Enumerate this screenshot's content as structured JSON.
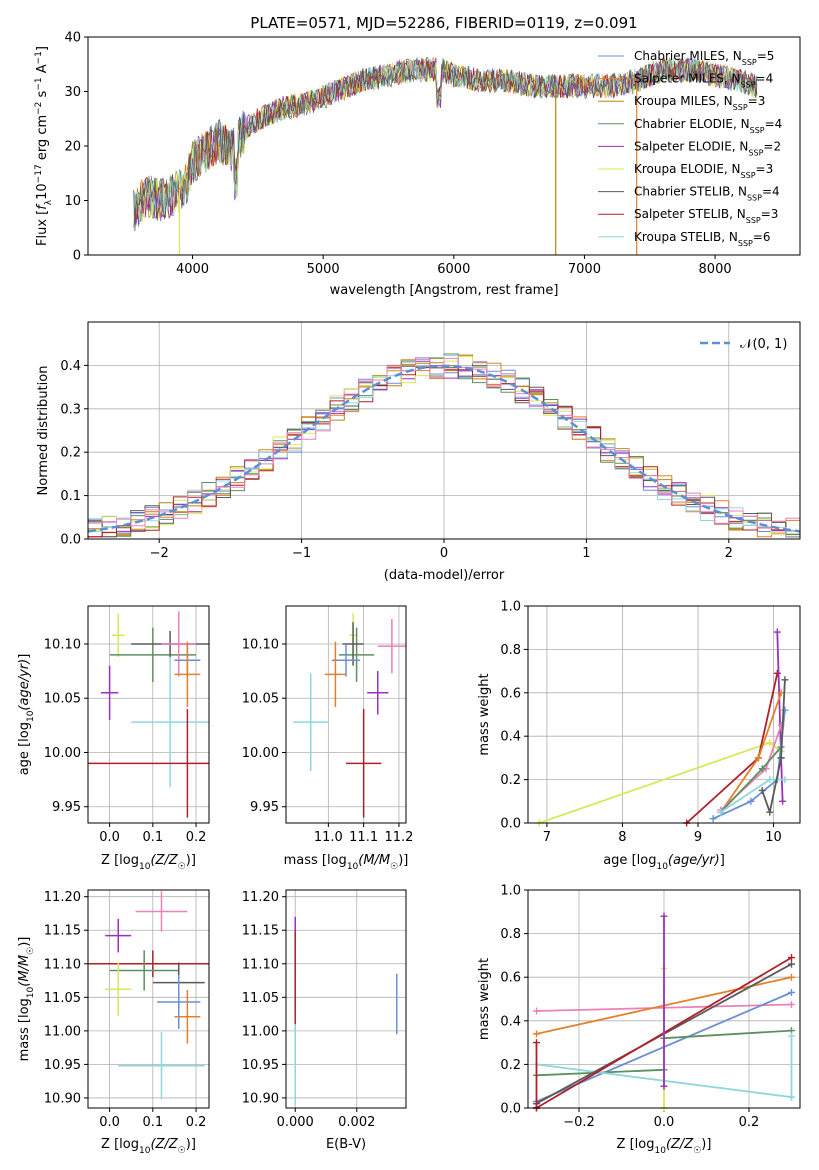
{
  "title": "PLATE=0571, MJD=52286, FIBERID=0119, z=0.091",
  "colors": {
    "Chabrier MILES": "#6b8fd6",
    "Salpeter MILES": "#e57f2a",
    "Kroupa MILES": "#b8860b",
    "Chabrier ELODIE": "#5f8f5f",
    "Salpeter ELODIE": "#9b2fbf",
    "Kroupa ELODIE": "#d8e85a",
    "Chabrier STELIB": "#5a5a5a",
    "Salpeter STELIB": "#b0202a",
    "Kroupa STELIB": "#8ed8dc",
    "pink": "#ec80b8",
    "normal": "#5b8fd6"
  },
  "chart_data": [
    {
      "type": "line",
      "name": "spectrum",
      "xlabel": "wavelength [Angstrom, rest frame]",
      "ylabel": "Flux [f_λ 10^-17 erg cm^-2 s^-1 A^-1]",
      "xlim": [
        3200,
        8650
      ],
      "ylim": [
        0,
        40
      ],
      "xticks": [
        4000,
        5000,
        6000,
        7000,
        8000
      ],
      "yticks": [
        0,
        10,
        20,
        30,
        40
      ],
      "legend_position": "top-right",
      "legend": [
        {
          "label": "Chabrier MILES, N",
          "sub": "SSP",
          "tail": "=5",
          "color": "#6b8fd6"
        },
        {
          "label": "Salpeter MILES, N",
          "sub": "SSP",
          "tail": "=4",
          "color": "#e57f2a"
        },
        {
          "label": "Kroupa MILES, N",
          "sub": "SSP",
          "tail": "=3",
          "color": "#b8860b"
        },
        {
          "label": "Chabrier ELODIE, N",
          "sub": "SSP",
          "tail": "=4",
          "color": "#5f8f5f"
        },
        {
          "label": "Salpeter ELODIE, N",
          "sub": "SSP",
          "tail": "=2",
          "color": "#9b2fbf"
        },
        {
          "label": "Kroupa ELODIE, N",
          "sub": "SSP",
          "tail": "=3",
          "color": "#d8e85a"
        },
        {
          "label": "Chabrier STELIB, N",
          "sub": "SSP",
          "tail": "=4",
          "color": "#5a5a5a"
        },
        {
          "label": "Salpeter STELIB, N",
          "sub": "SSP",
          "tail": "=3",
          "color": "#b0202a"
        },
        {
          "label": "Kroupa STELIB, N",
          "sub": "SSP",
          "tail": "=6",
          "color": "#8ed8dc"
        }
      ],
      "continuum": [
        [
          3550,
          8
        ],
        [
          3650,
          11
        ],
        [
          3750,
          10
        ],
        [
          3850,
          11
        ],
        [
          3950,
          13
        ],
        [
          4000,
          17
        ],
        [
          4100,
          19
        ],
        [
          4200,
          21
        ],
        [
          4300,
          19
        ],
        [
          4400,
          23
        ],
        [
          4500,
          25
        ],
        [
          4700,
          27
        ],
        [
          4900,
          28
        ],
        [
          5100,
          30
        ],
        [
          5300,
          32
        ],
        [
          5500,
          33
        ],
        [
          5700,
          34
        ],
        [
          5900,
          34
        ],
        [
          6000,
          33
        ],
        [
          6200,
          32
        ],
        [
          6400,
          32
        ],
        [
          6600,
          31
        ],
        [
          6800,
          31
        ],
        [
          7000,
          31
        ],
        [
          7200,
          31
        ],
        [
          7400,
          32
        ],
        [
          7600,
          34
        ],
        [
          7800,
          34
        ],
        [
          8000,
          33
        ],
        [
          8200,
          32
        ],
        [
          8300,
          31
        ]
      ],
      "spikes": [
        [
          3900,
          0
        ],
        [
          6780,
          0
        ],
        [
          7400,
          0
        ]
      ]
    },
    {
      "type": "histogram",
      "name": "residuals",
      "xlabel": "(data-model)/error",
      "ylabel": "Normed distribution",
      "xlim": [
        -2.5,
        2.5
      ],
      "ylim": [
        0,
        0.5
      ],
      "xticks": [
        -2,
        -1,
        0,
        1,
        2
      ],
      "yticks": [
        0.0,
        0.1,
        0.2,
        0.3,
        0.4
      ],
      "legend_position": "top-right",
      "legend_label": "𝒩(0, 1)",
      "bin_width": 0.1
    },
    {
      "type": "errorbar",
      "name": "age-vs-Z",
      "xlabel": "Z [log10(Z/Z☉)]",
      "ylabel": "age [log10(age/yr)]",
      "xlim": [
        -0.05,
        0.23
      ],
      "ylim": [
        9.935,
        10.135
      ],
      "xticks": [
        0.0,
        0.1,
        0.2
      ],
      "yticks": [
        9.95,
        10.0,
        10.05,
        10.1
      ],
      "points": [
        {
          "x": 0.02,
          "y": 10.108,
          "xerr": 0.015,
          "yerr": 0.02,
          "color": "#d8e85a"
        },
        {
          "x": 0.1,
          "y": 10.09,
          "xerr": 0.1,
          "yerr": 0.025,
          "color": "#5f8f5f"
        },
        {
          "x": 0.14,
          "y": 10.1,
          "xerr": 0.09,
          "yerr": 0.012,
          "color": "#5a5a5a"
        },
        {
          "x": 0.16,
          "y": 10.1,
          "xerr": 0.04,
          "yerr": 0.03,
          "color": "#ec80b8"
        },
        {
          "x": 0.18,
          "y": 10.085,
          "xerr": 0.03,
          "yerr": 0.015,
          "color": "#6b8fd6"
        },
        {
          "x": 0.18,
          "y": 10.072,
          "xerr": 0.03,
          "yerr": 0.03,
          "color": "#e57f2a"
        },
        {
          "x": 0.0,
          "y": 10.055,
          "xerr": 0.02,
          "yerr": 0.025,
          "color": "#9b2fbf"
        },
        {
          "x": 0.14,
          "y": 10.028,
          "xerr": 0.09,
          "yerr": 0.06,
          "color": "#8ed8dc"
        },
        {
          "x": 0.18,
          "y": 9.99,
          "xerr": 0.25,
          "yerr": 0.05,
          "color": "#b0202a"
        }
      ]
    },
    {
      "type": "errorbar",
      "name": "age-vs-mass",
      "xlabel": "mass [log10(M/M☉)]",
      "ylabel": "",
      "xlim": [
        10.88,
        11.22
      ],
      "ylim": [
        9.935,
        10.135
      ],
      "xticks": [
        11.0,
        11.1,
        11.2
      ],
      "yticks": [
        9.95,
        10.0,
        10.05,
        10.1
      ],
      "points": [
        {
          "x": 11.07,
          "y": 10.108,
          "xerr": 0.01,
          "yerr": 0.02,
          "color": "#d8e85a"
        },
        {
          "x": 11.08,
          "y": 10.09,
          "xerr": 0.05,
          "yerr": 0.025,
          "color": "#5f8f5f"
        },
        {
          "x": 11.07,
          "y": 10.1,
          "xerr": 0.03,
          "yerr": 0.02,
          "color": "#5a5a5a"
        },
        {
          "x": 11.18,
          "y": 10.098,
          "xerr": 0.04,
          "yerr": 0.025,
          "color": "#ec80b8"
        },
        {
          "x": 11.05,
          "y": 10.085,
          "xerr": 0.04,
          "yerr": 0.015,
          "color": "#6b8fd6"
        },
        {
          "x": 11.02,
          "y": 10.072,
          "xerr": 0.03,
          "yerr": 0.03,
          "color": "#e57f2a"
        },
        {
          "x": 11.14,
          "y": 10.055,
          "xerr": 0.03,
          "yerr": 0.02,
          "color": "#9b2fbf"
        },
        {
          "x": 10.95,
          "y": 10.028,
          "xerr": 0.05,
          "yerr": 0.045,
          "color": "#8ed8dc"
        },
        {
          "x": 11.1,
          "y": 9.99,
          "xerr": 0.05,
          "yerr": 0.05,
          "color": "#b0202a"
        }
      ]
    },
    {
      "type": "line",
      "name": "weight-vs-age",
      "xlabel": "age [log10(age/yr)]",
      "ylabel": "mass weight",
      "xlim": [
        6.75,
        10.35
      ],
      "ylim": [
        0,
        1.0
      ],
      "xticks": [
        7,
        8,
        9,
        10
      ],
      "yticks": [
        0.0,
        0.2,
        0.4,
        0.6,
        0.8,
        1.0
      ]
    },
    {
      "type": "errorbar",
      "name": "mass-vs-Z",
      "xlabel": "Z [log10(Z/Z☉)]",
      "ylabel": "mass [log10(M/M☉)]",
      "xlim": [
        -0.05,
        0.23
      ],
      "ylim": [
        10.885,
        11.21
      ],
      "xticks": [
        0.0,
        0.1,
        0.2
      ],
      "yticks": [
        10.9,
        10.95,
        11.0,
        11.05,
        11.1,
        11.15,
        11.2
      ],
      "points": [
        {
          "x": 0.12,
          "y": 11.178,
          "xerr": 0.06,
          "yerr": 0.03,
          "color": "#ec80b8"
        },
        {
          "x": 0.02,
          "y": 11.142,
          "xerr": 0.03,
          "yerr": 0.025,
          "color": "#9b2fbf"
        },
        {
          "x": 0.1,
          "y": 11.1,
          "xerr": 0.25,
          "yerr": 0.02,
          "color": "#b0202a"
        },
        {
          "x": 0.08,
          "y": 11.09,
          "xerr": 0.08,
          "yerr": 0.03,
          "color": "#5f8f5f"
        },
        {
          "x": 0.16,
          "y": 11.072,
          "xerr": 0.06,
          "yerr": 0.03,
          "color": "#5a5a5a"
        },
        {
          "x": 0.02,
          "y": 11.062,
          "xerr": 0.03,
          "yerr": 0.04,
          "color": "#d8e85a"
        },
        {
          "x": 0.16,
          "y": 11.043,
          "xerr": 0.05,
          "yerr": 0.04,
          "color": "#6b8fd6"
        },
        {
          "x": 0.18,
          "y": 11.021,
          "xerr": 0.03,
          "yerr": 0.04,
          "color": "#e57f2a"
        },
        {
          "x": 0.12,
          "y": 10.948,
          "xerr": 0.1,
          "yerr": 0.05,
          "color": "#8ed8dc"
        }
      ]
    },
    {
      "type": "errorbar",
      "name": "mass-vs-ebv",
      "xlabel": "E(B-V)",
      "ylabel": "",
      "xlim": [
        -0.0003,
        0.0036
      ],
      "ylim": [
        10.885,
        11.21
      ],
      "xticks": [
        0.0,
        0.002
      ],
      "yticks": [
        10.9,
        10.95,
        11.0,
        11.05,
        11.1,
        11.15,
        11.2
      ],
      "points": [
        {
          "x": 0.0,
          "y": 11.1,
          "xerr": 0,
          "yerr": 0.07,
          "color": "#9b2fbf"
        },
        {
          "x": 0.0,
          "y": 11.05,
          "xerr": 0,
          "yerr": 0.1,
          "color": "#b0202a"
        },
        {
          "x": 0.0,
          "y": 10.95,
          "xerr": 0,
          "yerr": 0.06,
          "color": "#8ed8dc"
        },
        {
          "x": 0.0033,
          "y": 11.04,
          "xerr": 0,
          "yerr": 0.045,
          "color": "#6b8fd6"
        }
      ]
    },
    {
      "type": "line",
      "name": "weight-vs-Z",
      "xlabel": "Z [log10(Z/Z☉)]",
      "ylabel": "mass weight",
      "xlim": [
        -0.32,
        0.32
      ],
      "ylim": [
        0,
        1.0
      ],
      "xticks": [
        -0.2,
        0.0,
        0.2
      ],
      "yticks": [
        0.0,
        0.2,
        0.4,
        0.6,
        0.8,
        1.0
      ]
    }
  ]
}
